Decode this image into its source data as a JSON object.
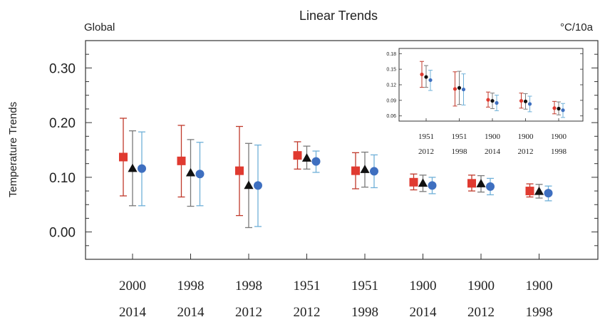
{
  "chart_data": {
    "type": "scatter",
    "title": "Linear Trends",
    "region_label": "Global",
    "unit_label": "°C/10a",
    "ylabel": "Temperature Trends",
    "ylim": [
      -0.05,
      0.35
    ],
    "yticks": [
      "0.00",
      "0.10",
      "0.20",
      "0.30"
    ],
    "ytick_values": [
      0.0,
      0.1,
      0.2,
      0.3
    ],
    "categories": [
      {
        "top": "2000",
        "bottom": "2014"
      },
      {
        "top": "1998",
        "bottom": "2014"
      },
      {
        "top": "1998",
        "bottom": "2012"
      },
      {
        "top": "1951",
        "bottom": "2012"
      },
      {
        "top": "1951",
        "bottom": "1998"
      },
      {
        "top": "1900",
        "bottom": "2014"
      },
      {
        "top": "1900",
        "bottom": "2012"
      },
      {
        "top": "1900",
        "bottom": "1998"
      }
    ],
    "series": [
      {
        "marker": "square",
        "color": "#e03a30",
        "bar_color": "#c0392b",
        "values": [
          0.137,
          0.13,
          0.112,
          0.14,
          0.112,
          0.091,
          0.089,
          0.075
        ],
        "low": [
          0.066,
          0.064,
          0.03,
          0.115,
          0.079,
          0.077,
          0.075,
          0.064
        ],
        "high": [
          0.208,
          0.195,
          0.193,
          0.165,
          0.145,
          0.106,
          0.104,
          0.088
        ]
      },
      {
        "marker": "triangle",
        "color": "#111111",
        "bar_color": "#7a7a7a",
        "values": [
          0.116,
          0.108,
          0.085,
          0.135,
          0.114,
          0.089,
          0.088,
          0.074
        ],
        "low": [
          0.048,
          0.047,
          0.008,
          0.115,
          0.082,
          0.074,
          0.073,
          0.062
        ],
        "high": [
          0.185,
          0.169,
          0.162,
          0.157,
          0.146,
          0.104,
          0.103,
          0.087
        ]
      },
      {
        "marker": "circle",
        "color": "#3e6fc0",
        "bar_color": "#6fb0d8",
        "values": [
          0.116,
          0.106,
          0.085,
          0.129,
          0.111,
          0.085,
          0.083,
          0.071
        ],
        "low": [
          0.048,
          0.048,
          0.01,
          0.109,
          0.081,
          0.07,
          0.068,
          0.057
        ],
        "high": [
          0.183,
          0.164,
          0.159,
          0.148,
          0.141,
          0.1,
          0.098,
          0.084
        ]
      }
    ],
    "inset": {
      "ylim": [
        0.05,
        0.19
      ],
      "yticks": [
        "0.06",
        "0.09",
        "0.12",
        "0.15",
        "0.18"
      ],
      "ytick_values": [
        0.06,
        0.09,
        0.12,
        0.15,
        0.18
      ],
      "categories": [
        {
          "top": "1951",
          "bottom": "2012"
        },
        {
          "top": "1951",
          "bottom": "1998"
        },
        {
          "top": "1900",
          "bottom": "2014"
        },
        {
          "top": "1900",
          "bottom": "2012"
        },
        {
          "top": "1900",
          "bottom": "1998"
        }
      ],
      "series": [
        {
          "marker": "circle",
          "color": "#e03a30",
          "bar_color": "#c0392b",
          "values": [
            0.14,
            0.112,
            0.091,
            0.089,
            0.075
          ],
          "low": [
            0.115,
            0.079,
            0.077,
            0.075,
            0.064
          ],
          "high": [
            0.165,
            0.145,
            0.106,
            0.104,
            0.088
          ]
        },
        {
          "marker": "circle",
          "color": "#111111",
          "bar_color": "#7a7a7a",
          "values": [
            0.135,
            0.114,
            0.089,
            0.088,
            0.074
          ],
          "low": [
            0.115,
            0.082,
            0.074,
            0.073,
            0.062
          ],
          "high": [
            0.157,
            0.146,
            0.104,
            0.103,
            0.087
          ]
        },
        {
          "marker": "circle",
          "color": "#3e6fc0",
          "bar_color": "#6fb0d8",
          "values": [
            0.129,
            0.111,
            0.085,
            0.083,
            0.071
          ],
          "low": [
            0.109,
            0.081,
            0.07,
            0.068,
            0.057
          ],
          "high": [
            0.148,
            0.141,
            0.1,
            0.098,
            0.084
          ]
        }
      ]
    }
  }
}
